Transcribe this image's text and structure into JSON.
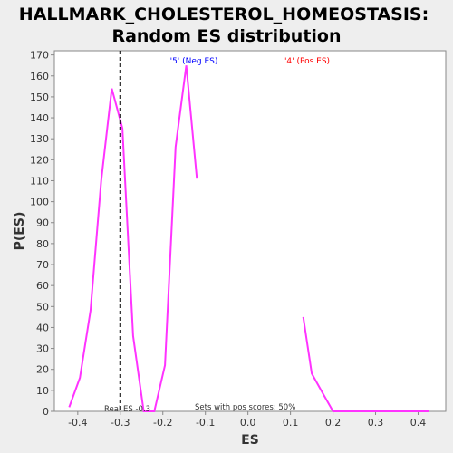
{
  "chart_data": {
    "type": "line",
    "title_line1": "HALLMARK_CHOLESTEROL_HOMEOSTASIS:",
    "title_line2": "Random ES distribution",
    "xlabel": "ES",
    "ylabel": "P(ES)",
    "xlim": [
      -0.455,
      0.465
    ],
    "ylim": [
      0,
      172
    ],
    "xticks": [
      "-0.4",
      "-0.3",
      "-0.2",
      "-0.1",
      "0.0",
      "0.1",
      "0.2",
      "0.3",
      "0.4"
    ],
    "xtick_values": [
      -0.4,
      -0.3,
      -0.2,
      -0.1,
      0.0,
      0.1,
      0.2,
      0.3,
      0.4
    ],
    "yticks": [
      "0",
      "10",
      "20",
      "30",
      "40",
      "50",
      "60",
      "70",
      "80",
      "90",
      "100",
      "110",
      "120",
      "130",
      "140",
      "150",
      "160",
      "170"
    ],
    "ytick_values": [
      0,
      10,
      20,
      30,
      40,
      50,
      60,
      70,
      80,
      90,
      100,
      110,
      120,
      130,
      140,
      150,
      160,
      170
    ],
    "grid": false,
    "series": [
      {
        "color": "#ff33ff",
        "x": [
          -0.42,
          -0.395,
          -0.37,
          -0.345,
          -0.32,
          -0.295,
          -0.27,
          -0.245,
          -0.22,
          -0.195,
          -0.17,
          -0.145,
          -0.12,
          0.13,
          0.15,
          0.175,
          0.2,
          0.225,
          0.25,
          0.275,
          0.3,
          0.325,
          0.35,
          0.375,
          0.4,
          0.425
        ],
        "y": [
          2,
          16,
          48,
          110,
          154,
          135,
          36,
          0,
          0,
          22,
          126,
          165,
          111,
          45,
          18,
          9,
          0,
          0,
          0,
          0,
          0,
          0,
          0,
          0,
          0,
          0
        ]
      }
    ],
    "real_es_line": {
      "x": -0.3,
      "label": "Real ES -0.3"
    },
    "legend_neg": {
      "text": "'5' (Neg ES)",
      "color": "#0000ff"
    },
    "legend_pos": {
      "text": "'4' (Pos ES)",
      "color": "#ff0000"
    },
    "footnote": "Sets with pos scores: 50%"
  }
}
